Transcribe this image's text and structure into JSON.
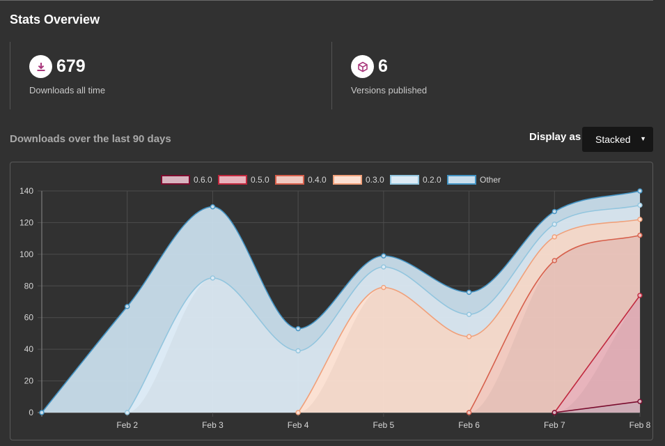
{
  "stats": {
    "title": "Stats Overview",
    "downloads": {
      "value": "679",
      "label": "Downloads all time",
      "icon": "download-icon"
    },
    "versions": {
      "value": "6",
      "label": "Versions published",
      "icon": "box-icon"
    }
  },
  "chart_header": {
    "title": "Downloads over the last 90 days",
    "display_as_label": "Display as",
    "display_mode": "Stacked"
  },
  "colors": {
    "background": "#313131",
    "icon_accent": "#a8357a"
  },
  "chart_data": {
    "type": "area",
    "stacked": true,
    "x": [
      "",
      "Feb 2",
      "Feb 3",
      "Feb 4",
      "Feb 5",
      "Feb 6",
      "Feb 7",
      "Feb 8"
    ],
    "ylim": [
      0,
      140
    ],
    "yticks": [
      0,
      20,
      40,
      60,
      80,
      100,
      120,
      140
    ],
    "grid": true,
    "legend_position": "top",
    "series": [
      {
        "name": "0.6.0",
        "stroke": "#7a0c2e",
        "fill": "#d8b4bf",
        "values": [
          null,
          null,
          null,
          null,
          null,
          null,
          0,
          7
        ]
      },
      {
        "name": "0.5.0",
        "stroke": "#c0283e",
        "fill": "#e8b3bc",
        "values": [
          null,
          null,
          null,
          null,
          null,
          null,
          0,
          67
        ]
      },
      {
        "name": "0.4.0",
        "stroke": "#d65f4b",
        "fill": "#f0c9c0",
        "values": [
          null,
          null,
          null,
          null,
          null,
          0,
          96,
          38
        ]
      },
      {
        "name": "0.3.0",
        "stroke": "#f0a07a",
        "fill": "#fde0d2",
        "values": [
          null,
          null,
          null,
          0,
          79,
          48,
          15,
          10
        ]
      },
      {
        "name": "0.2.0",
        "stroke": "#92c5de",
        "fill": "#ddebf5",
        "values": [
          null,
          0,
          85,
          39,
          13,
          14,
          8,
          9
        ]
      },
      {
        "name": "Other",
        "stroke": "#4393c3",
        "fill": "#c9deec",
        "values": [
          0,
          67,
          45,
          14,
          7,
          14,
          8,
          9
        ]
      }
    ]
  }
}
